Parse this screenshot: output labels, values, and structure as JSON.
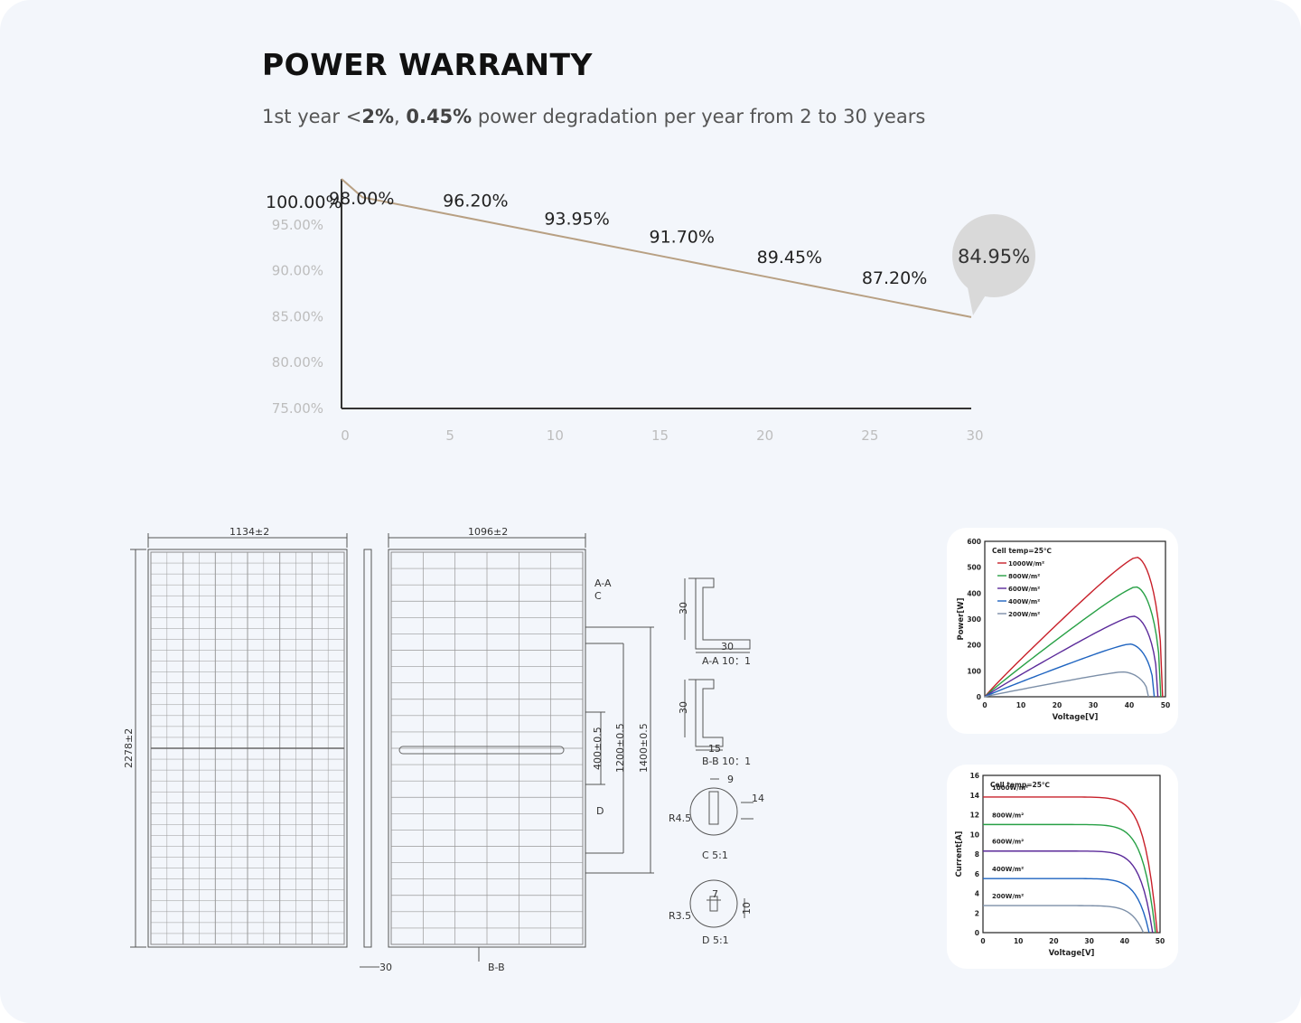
{
  "header": {
    "title": "POWER WARRANTY",
    "subtitle_prefix": "1st year <",
    "subtitle_bold_1": "2%",
    "subtitle_mid": ", ",
    "subtitle_bold_2": "0.45%",
    "subtitle_suffix": " power degradation per year from 2 to 30 years"
  },
  "colors": {
    "warranty_line": "#b8a083",
    "bubble": "#d9d9d9",
    "irr_1000": "#c8202a",
    "irr_800": "#27a045",
    "irr_600": "#5b2a9a",
    "irr_400": "#1f64c0",
    "irr_200": "#7c8fa8"
  },
  "chart_data": [
    {
      "type": "line",
      "title": "POWER WARRANTY",
      "x": [
        0,
        1,
        5,
        10,
        15,
        20,
        25,
        30
      ],
      "values": [
        100.0,
        98.0,
        96.2,
        93.95,
        91.7,
        89.45,
        87.2,
        84.95
      ],
      "data_labels": [
        {
          "x": 0,
          "text": "100.00%"
        },
        {
          "x": 1,
          "text": "98.00%"
        },
        {
          "x": 5,
          "text": "96.20%"
        },
        {
          "x": 10,
          "text": "93.95%"
        },
        {
          "x": 15,
          "text": "91.70%"
        },
        {
          "x": 20,
          "text": "89.45%"
        },
        {
          "x": 25,
          "text": "87.20%"
        },
        {
          "x": 30,
          "text": "84.95%"
        }
      ],
      "x_ticks": [
        "0",
        "5",
        "10",
        "15",
        "20",
        "25",
        "30"
      ],
      "y_ticks": [
        "95.00%",
        "90.00%",
        "85.00%",
        "80.00%",
        "75.00%"
      ],
      "xlim": [
        0,
        30
      ],
      "ylim": [
        75,
        100
      ],
      "grid": false
    },
    {
      "type": "line",
      "annotation": "Cell temp=25℃",
      "xlabel": "Voltage[V]",
      "ylabel": "Power[W]",
      "xlim": [
        0,
        50
      ],
      "ylim": [
        0,
        600
      ],
      "x_ticks": [
        "0",
        "10",
        "20",
        "30",
        "40",
        "50"
      ],
      "y_ticks": [
        "0",
        "100",
        "200",
        "300",
        "400",
        "500",
        "600"
      ],
      "legend_position": "top-left",
      "series": [
        {
          "name": "1000W/m²",
          "peak_voltage": 41.7,
          "peak_power": 540,
          "open_circuit_voltage": 49.2
        },
        {
          "name": "800W/m²",
          "peak_voltage": 41.5,
          "peak_power": 425,
          "open_circuit_voltage": 48.7
        },
        {
          "name": "600W/m²",
          "peak_voltage": 40.8,
          "peak_power": 312,
          "open_circuit_voltage": 47.9
        },
        {
          "name": "400W/m²",
          "peak_voltage": 39.8,
          "peak_power": 204,
          "open_circuit_voltage": 46.9
        },
        {
          "name": "200W/m²",
          "peak_voltage": 37.8,
          "peak_power": 96,
          "open_circuit_voltage": 45.3
        }
      ]
    },
    {
      "type": "line",
      "annotation": "Cell temp=25℃",
      "xlabel": "Voltage[V]",
      "ylabel": "Current[A]",
      "xlim": [
        0,
        50
      ],
      "ylim": [
        0,
        16
      ],
      "x_ticks": [
        "0",
        "10",
        "20",
        "30",
        "40",
        "50"
      ],
      "y_ticks": [
        "0",
        "2",
        "4",
        "6",
        "8",
        "10",
        "12",
        "14",
        "16"
      ],
      "series": [
        {
          "name": "1000W/m²",
          "short_circuit_current": 13.8,
          "open_circuit_voltage": 49.2
        },
        {
          "name": "800W/m²",
          "short_circuit_current": 11.0,
          "open_circuit_voltage": 48.7
        },
        {
          "name": "600W/m²",
          "short_circuit_current": 8.3,
          "open_circuit_voltage": 47.9
        },
        {
          "name": "400W/m²",
          "short_circuit_current": 5.5,
          "open_circuit_voltage": 46.9
        },
        {
          "name": "200W/m²",
          "short_circuit_current": 2.75,
          "open_circuit_voltage": 45.3
        }
      ]
    }
  ],
  "drawing": {
    "front_width": "1134±2",
    "height": "2278±2",
    "back_width": "1096±2",
    "thickness": "30",
    "section_aa_marker": "A-A",
    "section_bb_marker": "B-B",
    "detail_c_marker": "C",
    "detail_d_marker": "D",
    "dim_400": "400±0.5",
    "dim_1200": "1200±0.5",
    "dim_1400": "1400±0.5",
    "aa_height": "30",
    "aa_width": "30",
    "aa_label": "A-A 10：1",
    "bb_height": "30",
    "bb_width": "15",
    "bb_label": "B-B 10：1",
    "c_dim_9": "9",
    "c_dim_14": "14",
    "c_radius": "R4.5",
    "c_label": "C   5:1",
    "d_dim_7": "7",
    "d_dim_10": "10",
    "d_radius": "R3.5",
    "d_label": "D   5:1"
  }
}
